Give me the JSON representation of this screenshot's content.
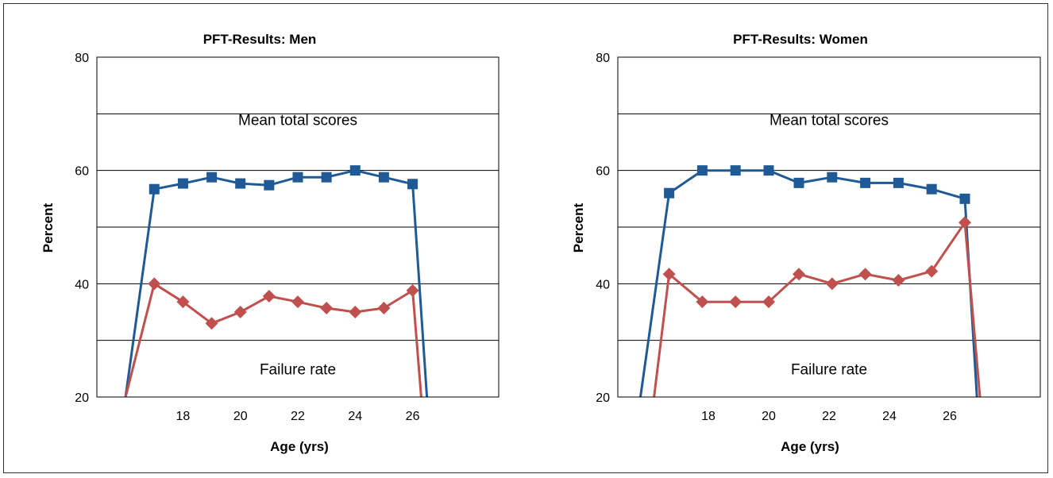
{
  "colors": {
    "mean_series": "#1f5a96",
    "failure_series": "#c0504d",
    "grid": "#000000"
  },
  "chart_data": [
    {
      "type": "line",
      "title": "PFT-Results: Men",
      "xlabel": "Age (yrs)",
      "ylabel": "Percent",
      "ylim": [
        20,
        80
      ],
      "yticks": [
        20,
        40,
        60,
        80
      ],
      "xlim": [
        15,
        29
      ],
      "xticks": [
        18,
        20,
        22,
        24,
        26
      ],
      "grid": true,
      "annotations": [
        {
          "text": "Mean total scores",
          "x": 22,
          "y": 68
        },
        {
          "text": "Failure rate",
          "x": 22,
          "y": 24
        }
      ],
      "series": [
        {
          "marker": "square",
          "x": [
            16.0,
            17.0,
            18.0,
            19.0,
            20.0,
            21.0,
            22.0,
            23.0,
            24.0,
            25.0,
            26.0,
            26.5
          ],
          "y": [
            20,
            56.7,
            57.7,
            58.8,
            57.7,
            57.4,
            58.8,
            58.8,
            60.0,
            58.8,
            57.6,
            20
          ]
        },
        {
          "marker": "diamond",
          "x": [
            16.0,
            17.0,
            18.0,
            19.0,
            20.0,
            21.0,
            22.0,
            23.0,
            24.0,
            25.0,
            26.0,
            26.3
          ],
          "y": [
            20,
            40.0,
            36.8,
            33.0,
            35.0,
            37.8,
            36.8,
            35.7,
            35.0,
            35.7,
            38.8,
            20
          ]
        }
      ]
    },
    {
      "type": "line",
      "title": "PFT-Results: Women",
      "xlabel": "Age (yrs)",
      "ylabel": "Percent",
      "ylim": [
        20,
        80
      ],
      "yticks": [
        20,
        40,
        60,
        80
      ],
      "xlim": [
        15,
        29
      ],
      "xticks": [
        18,
        20,
        22,
        24,
        26
      ],
      "grid": true,
      "annotations": [
        {
          "text": "Mean total scores",
          "x": 22,
          "y": 68
        },
        {
          "text": "Failure rate",
          "x": 22,
          "y": 24
        }
      ],
      "series": [
        {
          "marker": "square",
          "x": [
            15.75,
            16.7,
            17.8,
            18.9,
            20.0,
            21.0,
            22.1,
            23.2,
            24.3,
            25.4,
            26.5,
            26.9
          ],
          "y": [
            20,
            56.0,
            60.0,
            60.0,
            60.0,
            57.8,
            58.8,
            57.8,
            57.8,
            56.7,
            55.0,
            20
          ]
        },
        {
          "marker": "diamond",
          "x": [
            16.2,
            16.7,
            17.8,
            18.9,
            20.0,
            21.0,
            22.1,
            23.2,
            24.3,
            25.4,
            26.5,
            27.0
          ],
          "y": [
            20,
            41.7,
            36.8,
            36.8,
            36.8,
            41.7,
            40.0,
            41.7,
            40.6,
            42.2,
            50.8,
            20
          ]
        }
      ]
    }
  ]
}
